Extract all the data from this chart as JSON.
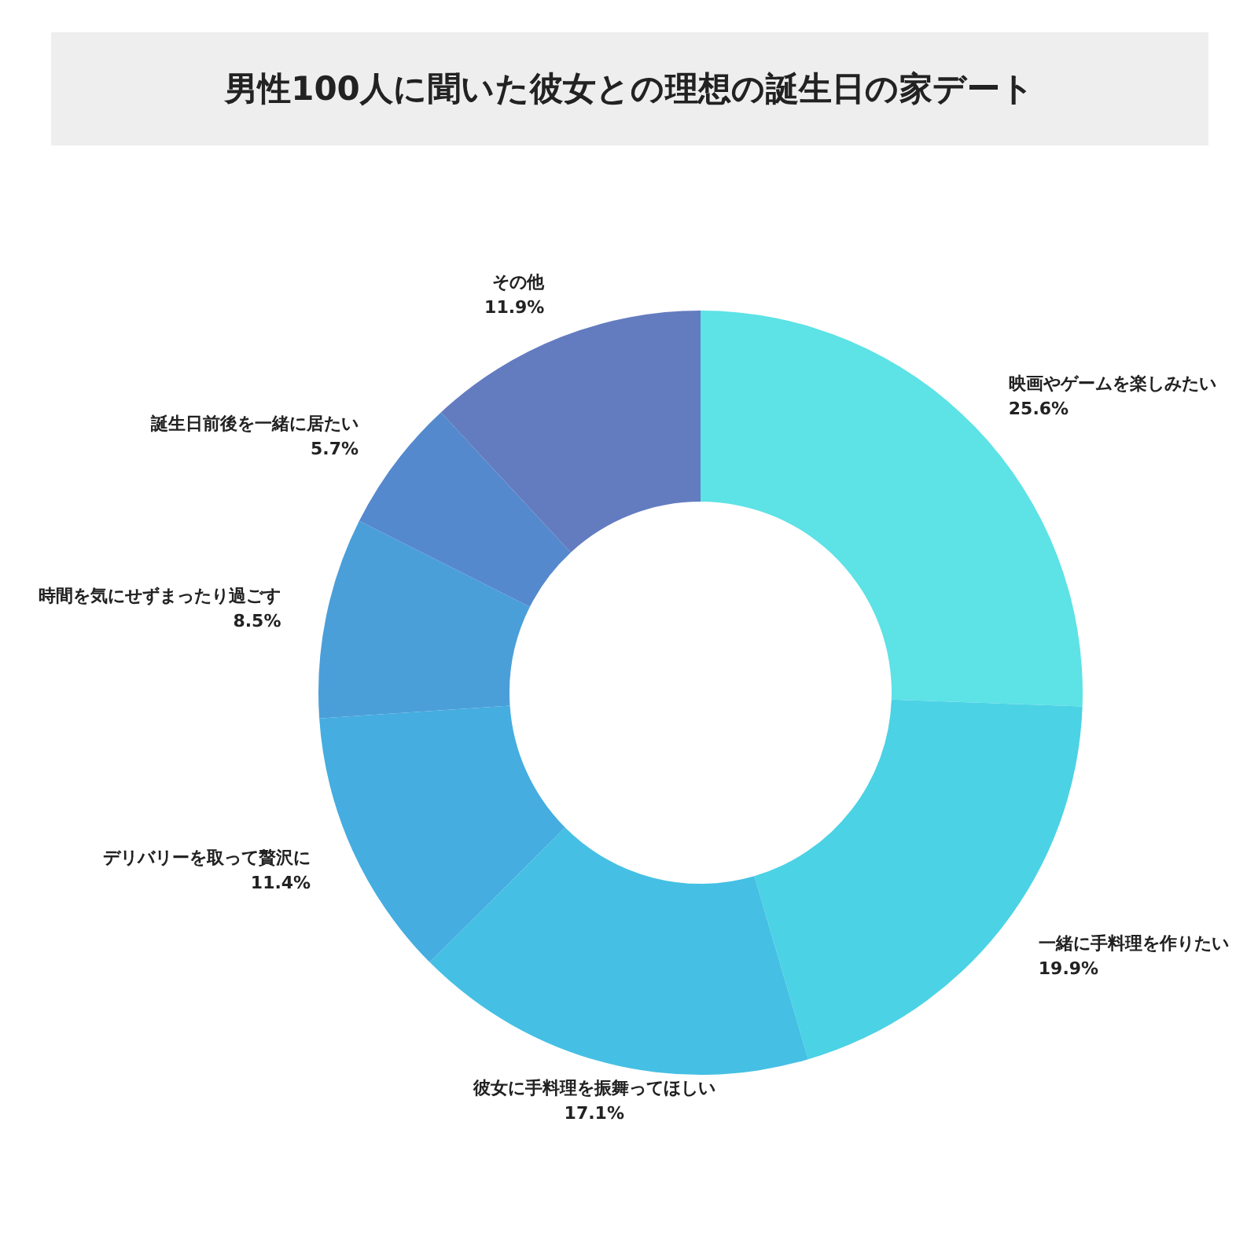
{
  "chart_data": {
    "type": "donut",
    "title": "男性100人に聞いた彼女との理想の誕生日の家デート",
    "categories": [
      "映画やゲームを楽しみたい",
      "一緒に手料理を作りたい",
      "彼女に手料理を振舞ってほしい",
      "デリバリーを取って贅沢に",
      "時間を気にせずまったり過ごす",
      "誕生日前後を一緒に居たい",
      "その他"
    ],
    "values": [
      25.6,
      19.9,
      17.1,
      11.4,
      8.5,
      5.7,
      11.9
    ],
    "value_labels": [
      "25.6%",
      "19.9%",
      "17.1%",
      "11.4%",
      "8.5%",
      "5.7%",
      "11.9%"
    ],
    "colors": [
      "#5de2e6",
      "#4bd2e5",
      "#45c0e4",
      "#45ade0",
      "#4a9fd9",
      "#5489cd",
      "#637cc0"
    ]
  }
}
